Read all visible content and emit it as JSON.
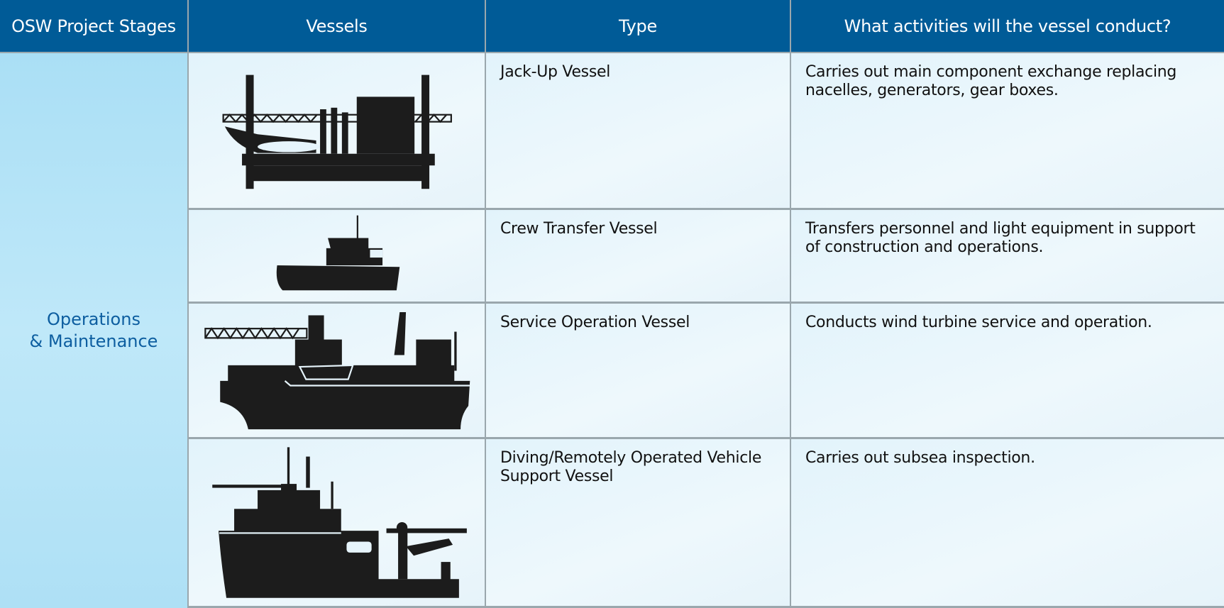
{
  "header": {
    "columns": [
      "OSW Project Stages",
      "Vessels",
      "Type",
      "What activities will the vessel conduct?"
    ]
  },
  "stage": "Operations\n& Maintenance",
  "rows": [
    {
      "type": "Jack-Up Vessel",
      "activity": "Carries out main component exchange replacing nacelles, generators, gear boxes."
    },
    {
      "type": "Crew Transfer Vessel",
      "activity": "Transfers personnel and light equipment in support of construction and operations."
    },
    {
      "type": "Service Operation Vessel",
      "activity": "Conducts wind turbine service and operation."
    },
    {
      "type": "Diving/Remotely Operated Vehicle Support Vessel",
      "activity": "Carries out subsea inspection."
    }
  ]
}
